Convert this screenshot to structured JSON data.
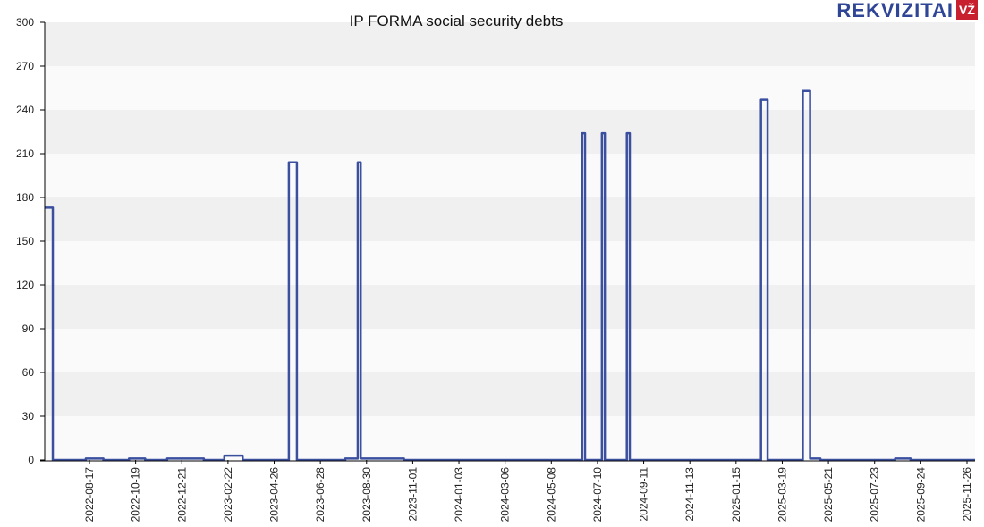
{
  "chart_data": {
    "type": "line",
    "title": "IP FORMA social security debts",
    "xlabel": "",
    "ylabel": "",
    "ylim": [
      0,
      300
    ],
    "yticks": [
      0,
      30,
      60,
      90,
      120,
      150,
      180,
      210,
      240,
      270,
      300
    ],
    "xlim": [
      "2022-06-17",
      "2025-12-07"
    ],
    "xticks": [
      "2022-08-17",
      "2022-10-19",
      "2022-12-21",
      "2023-02-22",
      "2023-04-26",
      "2023-06-28",
      "2023-08-30",
      "2023-11-01",
      "2024-01-03",
      "2024-03-06",
      "2024-05-08",
      "2024-07-10",
      "2024-09-11",
      "2024-11-13",
      "2025-01-15",
      "2025-03-19",
      "2025-05-21",
      "2025-07-23",
      "2025-09-24",
      "2025-11-26"
    ],
    "grid": "horizontal bands",
    "legend": "none",
    "series": [
      {
        "name": "Social security debt",
        "color": "#3b4f9f",
        "step_points": [
          [
            "2022-06-17",
            173
          ],
          [
            "2022-06-28",
            0
          ],
          [
            "2022-08-12",
            1
          ],
          [
            "2022-09-05",
            0
          ],
          [
            "2022-10-10",
            1
          ],
          [
            "2022-11-01",
            0
          ],
          [
            "2022-12-01",
            1
          ],
          [
            "2023-01-20",
            0
          ],
          [
            "2023-02-17",
            3
          ],
          [
            "2023-03-14",
            0
          ],
          [
            "2023-05-16",
            204
          ],
          [
            "2023-05-27",
            0
          ],
          [
            "2023-08-01",
            1
          ],
          [
            "2023-08-18",
            204
          ],
          [
            "2023-08-22",
            1
          ],
          [
            "2023-10-20",
            0
          ],
          [
            "2024-06-19",
            224
          ],
          [
            "2024-06-23",
            0
          ],
          [
            "2024-07-16",
            224
          ],
          [
            "2024-07-20",
            0
          ],
          [
            "2024-08-19",
            224
          ],
          [
            "2024-08-23",
            0
          ],
          [
            "2025-02-18",
            247
          ],
          [
            "2025-02-27",
            0
          ],
          [
            "2025-04-16",
            253
          ],
          [
            "2025-04-26",
            1
          ],
          [
            "2025-05-10",
            0
          ],
          [
            "2025-08-20",
            1
          ],
          [
            "2025-09-10",
            0
          ],
          [
            "2025-12-07",
            0
          ]
        ]
      }
    ]
  },
  "brand": {
    "name": "REKVIZITAI",
    "badge": "VŽ"
  }
}
